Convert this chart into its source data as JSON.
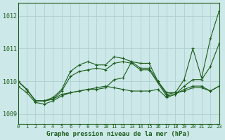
{
  "title": "Graphe pression niveau de la mer (hPa)",
  "bg_color": "#cce8e8",
  "grid_color": "#aacccc",
  "line_color": "#1a5c1a",
  "xlim": [
    0,
    23
  ],
  "ylim": [
    1008.7,
    1012.4
  ],
  "xticks": [
    0,
    1,
    2,
    3,
    4,
    5,
    6,
    7,
    8,
    9,
    10,
    11,
    12,
    13,
    14,
    15,
    16,
    17,
    18,
    19,
    20,
    21,
    22,
    23
  ],
  "yticks": [
    1009,
    1010,
    1011,
    1012
  ],
  "series": {
    "line1": [
      1010.0,
      1009.75,
      1009.4,
      1009.4,
      1009.45,
      1009.6,
      1009.65,
      1009.7,
      1009.75,
      1009.75,
      1009.8,
      1010.05,
      1010.1,
      1010.6,
      1010.55,
      1010.55,
      1010.0,
      1009.65,
      1009.65,
      1009.7,
      1009.8,
      1009.8,
      1009.7,
      1009.85
    ],
    "line2": [
      1009.85,
      1009.65,
      1009.35,
      1009.3,
      1009.4,
      1009.55,
      1009.65,
      1009.7,
      1009.75,
      1009.8,
      1009.85,
      1009.8,
      1009.75,
      1009.7,
      1009.7,
      1009.7,
      1009.75,
      1009.5,
      1009.6,
      1009.75,
      1009.85,
      1009.85,
      1009.7,
      1009.85
    ],
    "line3": [
      1010.0,
      1009.75,
      1009.4,
      1009.4,
      1009.45,
      1009.7,
      1010.15,
      1010.3,
      1010.35,
      1010.4,
      1010.35,
      1010.55,
      1010.6,
      1010.55,
      1010.35,
      1010.35,
      1009.95,
      1009.55,
      1009.6,
      1009.85,
      1010.05,
      1010.05,
      1010.45,
      1011.15
    ],
    "line4": [
      1010.0,
      1009.75,
      1009.4,
      1009.4,
      1009.5,
      1009.75,
      1010.3,
      1010.5,
      1010.6,
      1010.5,
      1010.5,
      1010.75,
      1010.7,
      1010.6,
      1010.4,
      1010.4,
      1010.0,
      1009.6,
      1009.65,
      1010.05,
      1011.0,
      1010.1,
      1011.3,
      1012.15
    ]
  }
}
